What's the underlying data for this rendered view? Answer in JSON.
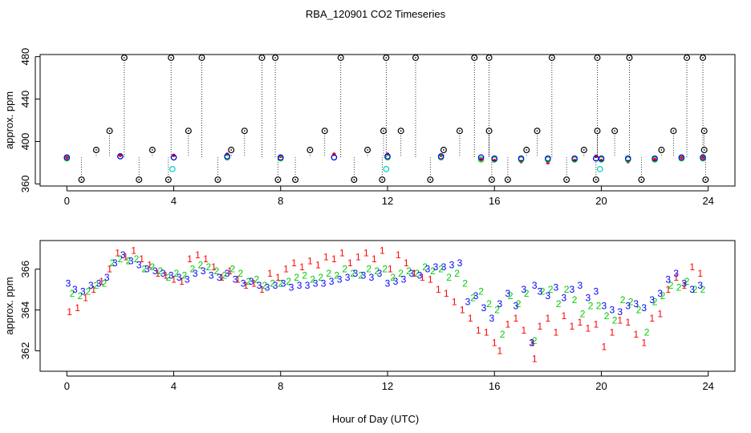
{
  "title": "RBA_120901  CO2 Timeseries",
  "xlabel": "Hour of Day (UTC)",
  "colors": {
    "series1": "#ff0000",
    "series2": "#00cc00",
    "series3": "#0000ff",
    "cyan": "#00cccc",
    "outlier": "#000000"
  },
  "chart_data": [
    {
      "type": "scatter",
      "panel": "top",
      "ylabel": "approx. ppm",
      "xlim": [
        -1,
        25
      ],
      "ylim": [
        358,
        482
      ],
      "xticks": [
        0,
        4,
        8,
        12,
        16,
        20,
        24
      ],
      "yticks": [
        360,
        400,
        440,
        480
      ],
      "grid": false,
      "series": [
        {
          "color": "#ff0000",
          "marker": "dot",
          "x": [
            0.0,
            2.0,
            4.0,
            6.0,
            8.0,
            10.0,
            12.0,
            14.0,
            15.5,
            16.0,
            17.0,
            18.0,
            19.0,
            19.8,
            20.0,
            21.0,
            22.0,
            23.0,
            23.8
          ],
          "y": [
            385,
            387,
            387,
            388,
            386,
            388,
            388,
            387,
            383,
            382,
            381,
            380,
            382,
            386,
            382,
            381,
            383,
            385,
            385
          ]
        },
        {
          "color": "#00cc00",
          "marker": "circle",
          "x": [
            0.0,
            2.0,
            4.0,
            6.0,
            8.0,
            10.0,
            12.0,
            14.0,
            15.5,
            16.0,
            17.0,
            18.0,
            19.0,
            19.8,
            20.0,
            21.0,
            22.0,
            23.0,
            23.8
          ],
          "y": [
            384,
            386,
            385,
            385,
            384,
            385,
            385,
            385,
            383,
            383,
            383,
            383,
            383,
            384,
            383,
            383,
            383,
            384,
            384
          ]
        },
        {
          "color": "#0000ff",
          "marker": "circle",
          "x": [
            0.0,
            2.0,
            4.0,
            6.0,
            8.0,
            10.0,
            12.0,
            14.0,
            15.5,
            16.0,
            17.0,
            18.0,
            19.0,
            19.8,
            20.0,
            21.0,
            22.0,
            23.0,
            23.8
          ],
          "y": [
            385,
            386,
            385,
            386,
            385,
            385,
            386,
            386,
            385,
            384,
            384,
            384,
            384,
            384,
            384,
            384,
            384,
            385,
            385
          ]
        },
        {
          "color": "#00cccc",
          "marker": "circle",
          "x": [
            3.95,
            11.95,
            19.95
          ],
          "y": [
            374,
            374,
            374
          ]
        },
        {
          "color": "#000000",
          "marker": "circle-dot",
          "x": [
            2.15,
            3.9,
            5.05,
            7.3,
            7.8,
            10.25,
            11.95,
            13.05,
            15.25,
            15.8,
            18.15,
            19.85,
            21.05,
            23.2,
            23.8,
            1.6,
            4.55,
            6.65,
            9.65,
            11.85,
            12.5,
            14.7,
            15.8,
            17.6,
            19.85,
            20.5,
            22.7,
            23.85,
            1.1,
            3.2,
            6.15,
            9.1,
            11.25,
            14.1,
            17.2,
            19.35,
            22.25,
            23.85,
            0.55,
            2.7,
            3.8,
            5.65,
            7.9,
            8.55,
            10.75,
            11.8,
            13.6,
            15.9,
            16.5,
            18.7,
            19.8,
            21.5,
            23.9
          ],
          "y": [
            479,
            479,
            479,
            479,
            479,
            479,
            479,
            479,
            479,
            479,
            479,
            479,
            479,
            479,
            479,
            410,
            410,
            410,
            410,
            410,
            410,
            410,
            410,
            410,
            410,
            410,
            410,
            410,
            392,
            392,
            392,
            392,
            392,
            392,
            392,
            392,
            392,
            392,
            364,
            364,
            364,
            364,
            364,
            364,
            364,
            364,
            364,
            364,
            364,
            364,
            364,
            364,
            364
          ]
        }
      ]
    },
    {
      "type": "scatter",
      "panel": "bottom",
      "ylabel": "approx. ppm",
      "xlim": [
        -1,
        25
      ],
      "ylim": [
        361,
        367.4
      ],
      "xticks": [
        0,
        4,
        8,
        12,
        16,
        20,
        24
      ],
      "yticks": [
        362,
        364,
        366
      ],
      "grid": false,
      "series": [
        {
          "label": "1",
          "color": "#ff0000",
          "x": [
            0.1,
            0.4,
            0.7,
            1.0,
            1.3,
            1.6,
            1.9,
            2.2,
            2.5,
            2.8,
            3.1,
            3.4,
            3.7,
            4.0,
            4.3,
            4.6,
            4.9,
            5.2,
            5.5,
            5.8,
            6.1,
            6.4,
            6.7,
            7.0,
            7.3,
            7.6,
            7.9,
            8.2,
            8.5,
            8.8,
            9.1,
            9.4,
            9.7,
            10.0,
            10.3,
            10.6,
            10.9,
            11.2,
            11.5,
            11.8,
            12.1,
            12.4,
            12.7,
            13.0,
            13.3,
            13.6,
            13.9,
            14.2,
            14.5,
            14.8,
            15.1,
            15.4,
            15.7,
            16.0,
            16.2,
            16.5,
            16.8,
            17.1,
            17.4,
            17.5,
            17.7,
            18.0,
            18.3,
            18.6,
            18.9,
            19.2,
            19.5,
            19.8,
            20.1,
            20.4,
            20.7,
            21.0,
            21.3,
            21.6,
            21.9,
            22.2,
            22.5,
            22.8,
            23.1,
            23.4,
            23.7
          ],
          "y": [
            363.9,
            364.1,
            364.6,
            365.0,
            365.4,
            366.0,
            366.8,
            366.6,
            366.9,
            366.5,
            366.2,
            365.8,
            365.7,
            365.5,
            365.4,
            366.5,
            366.7,
            366.5,
            366.1,
            365.6,
            365.9,
            365.5,
            365.2,
            365.3,
            365.0,
            365.8,
            365.6,
            366.0,
            366.3,
            366.1,
            366.4,
            366.2,
            366.6,
            366.5,
            366.8,
            366.3,
            366.6,
            366.8,
            366.5,
            366.9,
            366.0,
            366.7,
            366.3,
            365.8,
            365.6,
            365.5,
            365.0,
            364.8,
            364.4,
            364.0,
            363.6,
            363.0,
            362.9,
            362.4,
            362.0,
            363.3,
            363.6,
            363.0,
            362.4,
            361.6,
            363.2,
            363.6,
            362.9,
            363.7,
            363.2,
            363.4,
            363.1,
            363.3,
            362.2,
            362.9,
            363.5,
            363.4,
            362.8,
            362.4,
            363.6,
            363.8,
            365.0,
            365.6,
            365.2,
            366.1,
            365.8
          ]
        },
        {
          "label": "2",
          "color": "#00cc00",
          "x": [
            0.2,
            0.5,
            0.8,
            1.1,
            1.4,
            1.7,
            2.0,
            2.3,
            2.6,
            2.9,
            3.2,
            3.5,
            3.8,
            4.1,
            4.4,
            4.7,
            5.0,
            5.3,
            5.6,
            5.9,
            6.2,
            6.5,
            6.8,
            7.1,
            7.4,
            7.7,
            8.0,
            8.3,
            8.6,
            8.9,
            9.2,
            9.5,
            9.8,
            10.1,
            10.4,
            10.7,
            11.0,
            11.3,
            11.6,
            11.9,
            12.2,
            12.5,
            12.8,
            13.1,
            13.4,
            13.7,
            14.0,
            14.3,
            14.6,
            14.9,
            15.2,
            15.5,
            15.8,
            16.1,
            16.3,
            16.6,
            16.9,
            17.2,
            17.5,
            17.8,
            18.1,
            18.4,
            18.7,
            19.0,
            19.3,
            19.6,
            19.9,
            20.2,
            20.5,
            20.8,
            21.1,
            21.4,
            21.7,
            22.0,
            22.3,
            22.6,
            22.9,
            23.2,
            23.5,
            23.8
          ],
          "y": [
            364.8,
            364.7,
            364.9,
            365.2,
            365.3,
            366.3,
            366.5,
            366.4,
            366.5,
            366.0,
            366.1,
            365.9,
            365.6,
            365.8,
            365.7,
            366.0,
            366.2,
            366.1,
            365.9,
            365.7,
            366.0,
            365.8,
            365.4,
            365.5,
            365.2,
            365.3,
            365.3,
            365.4,
            365.6,
            365.7,
            365.5,
            365.6,
            365.8,
            365.7,
            366.0,
            365.8,
            365.7,
            366.0,
            365.9,
            366.0,
            365.6,
            365.8,
            365.9,
            365.8,
            366.1,
            365.9,
            366.0,
            365.6,
            365.8,
            365.3,
            364.6,
            364.9,
            364.3,
            364.0,
            362.8,
            364.7,
            364.3,
            364.8,
            362.5,
            364.9,
            365.0,
            364.3,
            365.0,
            364.5,
            363.8,
            364.2,
            364.2,
            363.7,
            363.5,
            364.5,
            364.4,
            364.0,
            362.9,
            364.4,
            364.7,
            365.2,
            365.1,
            365.4,
            365.0,
            365.0
          ]
        },
        {
          "label": "3",
          "color": "#0000ff",
          "x": [
            0.05,
            0.3,
            0.6,
            0.9,
            1.2,
            1.5,
            1.8,
            2.1,
            2.4,
            2.7,
            3.0,
            3.3,
            3.6,
            3.9,
            4.2,
            4.5,
            4.8,
            5.1,
            5.4,
            5.7,
            6.0,
            6.3,
            6.6,
            6.9,
            7.2,
            7.5,
            7.8,
            8.1,
            8.4,
            8.7,
            9.0,
            9.3,
            9.6,
            9.9,
            10.2,
            10.5,
            10.8,
            11.1,
            11.4,
            11.7,
            12.0,
            12.3,
            12.6,
            12.9,
            13.2,
            13.5,
            13.8,
            14.1,
            14.4,
            14.7,
            15.0,
            15.3,
            15.6,
            15.9,
            16.2,
            16.5,
            16.8,
            17.1,
            17.4,
            17.5,
            17.7,
            18.0,
            18.3,
            18.6,
            18.9,
            19.2,
            19.5,
            19.8,
            20.1,
            20.4,
            20.7,
            21.0,
            21.3,
            21.6,
            21.9,
            22.2,
            22.5,
            22.8,
            23.1,
            23.4,
            23.7
          ],
          "y": [
            365.3,
            365.0,
            364.9,
            365.2,
            365.3,
            365.6,
            366.3,
            366.7,
            366.4,
            366.2,
            366.0,
            365.9,
            365.8,
            365.7,
            365.6,
            365.5,
            365.8,
            365.9,
            365.7,
            365.6,
            365.8,
            365.5,
            365.3,
            365.4,
            365.2,
            365.1,
            365.2,
            365.3,
            365.1,
            365.2,
            365.2,
            365.3,
            365.3,
            365.4,
            365.5,
            365.6,
            365.8,
            365.7,
            365.6,
            365.8,
            365.3,
            365.4,
            365.5,
            365.8,
            365.7,
            366.0,
            366.1,
            366.1,
            366.2,
            366.3,
            364.4,
            364.7,
            364.1,
            363.6,
            364.3,
            364.8,
            364.2,
            365.0,
            362.4,
            365.2,
            364.9,
            364.7,
            365.1,
            364.6,
            365.0,
            365.2,
            364.6,
            364.9,
            364.2,
            364.0,
            363.9,
            364.2,
            364.3,
            364.1,
            364.5,
            364.8,
            365.5,
            365.8,
            365.3,
            365.0,
            365.2
          ]
        }
      ]
    }
  ]
}
